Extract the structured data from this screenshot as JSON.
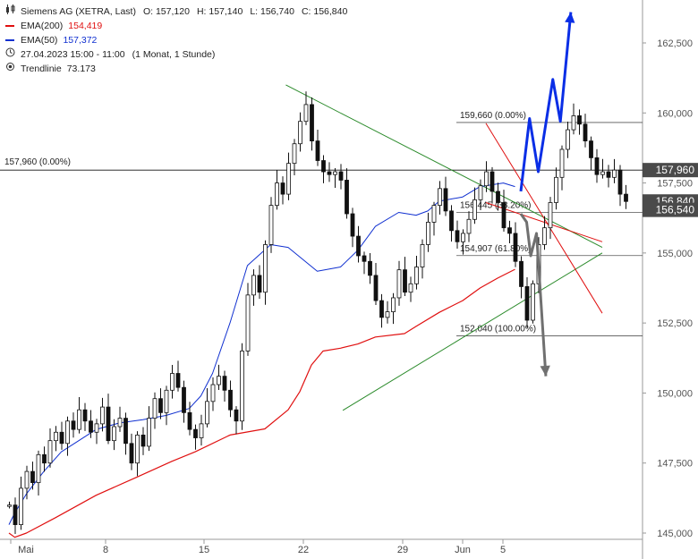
{
  "legend": {
    "title": "Siemens AG (XETRA, Last)",
    "ohlc": {
      "o": "O: 157,120",
      "h": "H: 157,140",
      "l": "L: 156,740",
      "c": "C: 156,840"
    },
    "ema200": {
      "label": "EMA(200)",
      "value": "154,419",
      "color": "#e01010"
    },
    "ema50": {
      "label": "EMA(50)",
      "value": "157,372",
      "color": "#1030d0"
    },
    "period": "27.04.2023 15:00 - 11:00",
    "interval": "(1 Monat, 1 Stunde)",
    "trend": {
      "label": "Trendlinie",
      "value": "73.173"
    }
  },
  "chart_data": {
    "type": "candlestick",
    "ylim": [
      144000,
      164500
    ],
    "ytick_labels": [
      "145,000",
      "147,500",
      "150,000",
      "152,500",
      "155,000",
      "157,500",
      "160,000",
      "162,500"
    ],
    "xtick_labels": [
      "Mai",
      "8",
      "15",
      "22",
      "29",
      "Jun",
      "5"
    ],
    "price_tags": [
      {
        "value": 157960,
        "label": "157,960",
        "dark": true
      },
      {
        "value": 156840,
        "label": "156,840",
        "dark": true
      },
      {
        "value": 156540,
        "label": "156,540",
        "dark": false
      }
    ],
    "horizontal_line": {
      "value": 157960,
      "label": "157,960 (0.00%)"
    },
    "fibonacci": [
      {
        "value": 159660,
        "label": "159,660 (0.00%)"
      },
      {
        "value": 156445,
        "label": "156,445 (38.20%)"
      },
      {
        "value": 154907,
        "label": "154,907 (61.80%)"
      },
      {
        "value": 152040,
        "label": "152,040 (100.00%)"
      }
    ],
    "colors": {
      "ema200": "#e01010",
      "ema50": "#1030d0",
      "triangle": "#2a8a2a",
      "channel": "#e01010",
      "bull": "#0a2ee6",
      "bear": "#707070"
    },
    "candle_closes": [
      146000,
      145300,
      146600,
      147200,
      146800,
      147800,
      147500,
      148300,
      148600,
      148200,
      149000,
      148700,
      149400,
      149000,
      148600,
      148900,
      149500,
      148300,
      148800,
      149100,
      148200,
      147500,
      148500,
      148100,
      149100,
      149800,
      149300,
      150100,
      150700,
      150200,
      149300,
      148700,
      148400,
      148900,
      149700,
      150300,
      150600,
      150100,
      149400,
      149000,
      151500,
      153500,
      154200,
      153600,
      155300,
      156700,
      157500,
      157100,
      158200,
      158900,
      159700,
      160300,
      159000,
      158300,
      157900,
      157800,
      157900,
      157600,
      156400,
      155600,
      154900,
      154700,
      154200,
      153300,
      152700,
      152900,
      153400,
      154400,
      153600,
      153900,
      154500,
      155300,
      156100,
      156700,
      157300,
      156500,
      155800,
      155400,
      155700,
      156200,
      156900,
      157400,
      157900,
      157200,
      156800,
      155900,
      155700,
      154700,
      153800,
      152600,
      153900,
      155300,
      155900,
      156800,
      157700,
      158700,
      159400,
      159900,
      159600,
      159000,
      158400,
      157800,
      157900,
      157700,
      157960,
      157100,
      156840
    ],
    "ema200_anchor": [
      [
        0,
        145000
      ],
      [
        1,
        144850
      ],
      [
        3,
        145000
      ],
      [
        8,
        145550
      ],
      [
        15,
        146350
      ],
      [
        22,
        147000
      ],
      [
        28,
        147560
      ],
      [
        32,
        147900
      ],
      [
        38,
        148500
      ],
      [
        44,
        148720
      ],
      [
        48,
        149400
      ],
      [
        50,
        150050
      ],
      [
        52,
        151000
      ],
      [
        54,
        151500
      ],
      [
        57,
        151600
      ],
      [
        60,
        151750
      ],
      [
        63,
        152000
      ],
      [
        68,
        152120
      ],
      [
        70,
        152380
      ],
      [
        74,
        152880
      ],
      [
        78,
        153300
      ],
      [
        81,
        153750
      ],
      [
        84,
        154100
      ],
      [
        87,
        154419
      ]
    ],
    "ema50_anchor": [
      [
        0,
        145300
      ],
      [
        1,
        145720
      ],
      [
        3,
        146400
      ],
      [
        6,
        147200
      ],
      [
        9,
        147900
      ],
      [
        12,
        148300
      ],
      [
        15,
        148700
      ],
      [
        19,
        148930
      ],
      [
        23,
        149050
      ],
      [
        27,
        149200
      ],
      [
        31,
        149450
      ],
      [
        33,
        149900
      ],
      [
        35,
        150700
      ],
      [
        38,
        152500
      ],
      [
        41,
        154550
      ],
      [
        45,
        155300
      ],
      [
        48,
        155200
      ],
      [
        53,
        154350
      ],
      [
        57,
        154500
      ],
      [
        60,
        155100
      ],
      [
        63,
        155950
      ],
      [
        67,
        156450
      ],
      [
        70,
        156350
      ],
      [
        72,
        156500
      ],
      [
        74,
        156850
      ],
      [
        78,
        157000
      ],
      [
        81,
        157370
      ],
      [
        85,
        157500
      ],
      [
        87,
        157372
      ]
    ],
    "triangle_lines": [
      [
        [
          47.6,
          161000
        ],
        [
          102,
          155200
        ]
      ],
      [
        [
          57.4,
          149380
        ],
        [
          102,
          155000
        ]
      ]
    ],
    "red_channel": [
      [
        [
          82,
          159630
        ],
        [
          102,
          152850
        ]
      ],
      [
        [
          82,
          156800
        ],
        [
          102,
          155400
        ]
      ]
    ],
    "bull_path": [
      [
        88,
        157200
      ],
      [
        89.5,
        159800
      ],
      [
        91,
        157900
      ],
      [
        93.5,
        161200
      ],
      [
        94.8,
        159700
      ],
      [
        96.6,
        163600
      ]
    ],
    "bear_path": [
      [
        88,
        156400
      ],
      [
        89,
        156100
      ],
      [
        89.7,
        154900
      ],
      [
        90.7,
        155700
      ],
      [
        92.3,
        150600
      ]
    ]
  }
}
